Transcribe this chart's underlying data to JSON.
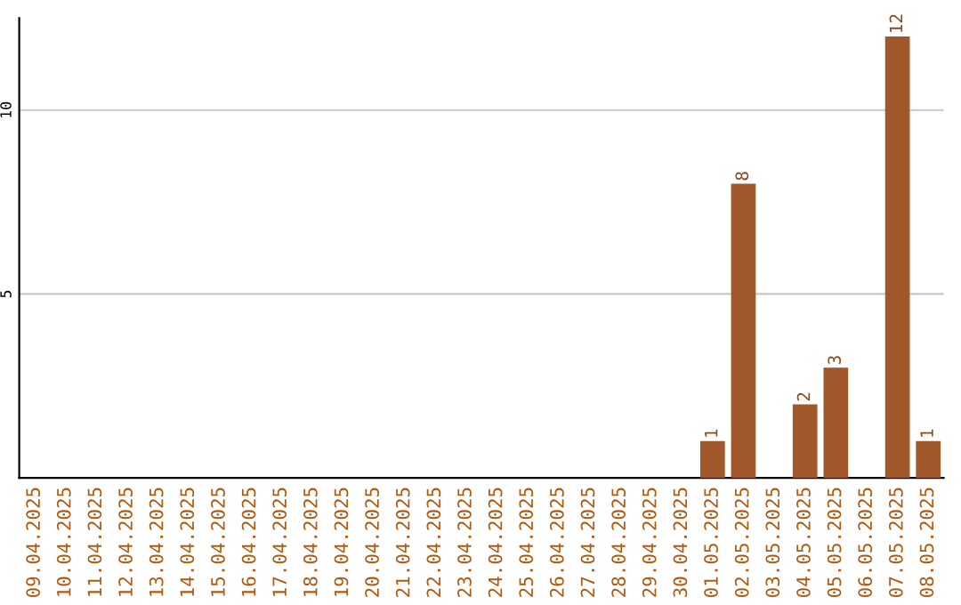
{
  "chart_data": {
    "type": "bar",
    "categories": [
      "09.04.2025",
      "10.04.2025",
      "11.04.2025",
      "12.04.2025",
      "13.04.2025",
      "14.04.2025",
      "15.04.2025",
      "16.04.2025",
      "17.04.2025",
      "18.04.2025",
      "19.04.2025",
      "20.04.2025",
      "21.04.2025",
      "22.04.2025",
      "23.04.2025",
      "24.04.2025",
      "25.04.2025",
      "26.04.2025",
      "27.04.2025",
      "28.04.2025",
      "29.04.2025",
      "30.04.2025",
      "01.05.2025",
      "02.05.2025",
      "03.05.2025",
      "04.05.2025",
      "05.05.2025",
      "06.05.2025",
      "07.05.2025",
      "08.05.2025"
    ],
    "values": [
      0,
      0,
      0,
      0,
      0,
      0,
      0,
      0,
      0,
      0,
      0,
      0,
      0,
      0,
      0,
      0,
      0,
      0,
      0,
      0,
      0,
      0,
      1,
      8,
      0,
      2,
      3,
      0,
      12,
      1
    ],
    "value_labels": [
      null,
      null,
      null,
      null,
      null,
      null,
      null,
      null,
      null,
      null,
      null,
      null,
      null,
      null,
      null,
      null,
      null,
      null,
      null,
      null,
      null,
      null,
      "1",
      "8",
      null,
      "2",
      "3",
      null,
      "12",
      "1"
    ],
    "color": "#a0582a",
    "ylim": [
      0,
      12.5
    ],
    "yticks": [
      5,
      10
    ],
    "grid": "y"
  }
}
